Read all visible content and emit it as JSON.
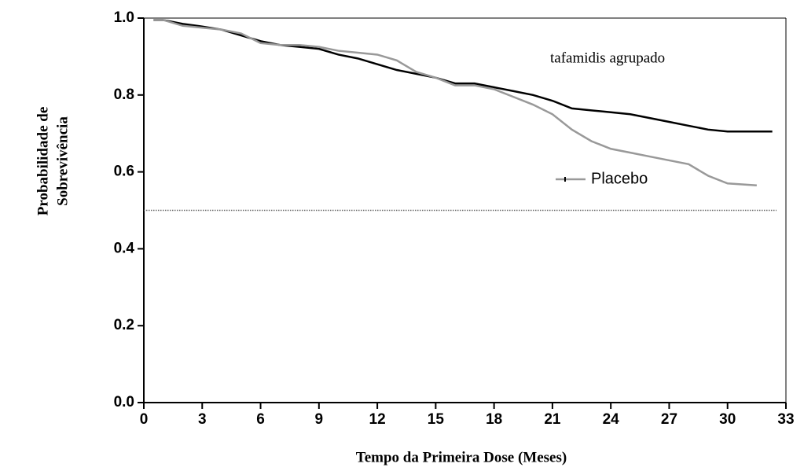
{
  "chart_data": {
    "type": "line",
    "x_label": "Tempo da Primeira Dose (Meses)",
    "y_label": [
      "Probabilidade de",
      "Sobrevivência"
    ],
    "xlim": [
      0,
      33
    ],
    "xticks": [
      0,
      3,
      6,
      9,
      12,
      15,
      18,
      21,
      24,
      27,
      30,
      33
    ],
    "ylim": [
      0,
      1
    ],
    "yticks": [
      {
        "value": 0,
        "label": "0.0"
      },
      0.2,
      0.4,
      0.6,
      0.8,
      {
        "value": 1,
        "label": "1.0"
      }
    ],
    "reference_line": 0.5,
    "series": [
      {
        "name": "tafamidis agrupado",
        "color": "#000000",
        "x": [
          0.5,
          1,
          2,
          3,
          4,
          5,
          6,
          7,
          8,
          9,
          10,
          11,
          12,
          13,
          14,
          15,
          16,
          17,
          18,
          19,
          20,
          21,
          22,
          23,
          24,
          25,
          26,
          27,
          28,
          29,
          30,
          31,
          32.3
        ],
        "values": [
          0.995,
          0.995,
          0.985,
          0.978,
          0.97,
          0.955,
          0.94,
          0.93,
          0.925,
          0.92,
          0.905,
          0.895,
          0.88,
          0.865,
          0.855,
          0.845,
          0.83,
          0.83,
          0.82,
          0.81,
          0.8,
          0.785,
          0.765,
          0.76,
          0.755,
          0.75,
          0.74,
          0.73,
          0.72,
          0.71,
          0.705,
          0.705,
          0.705
        ]
      },
      {
        "name": "Placebo",
        "color": "#999999",
        "x": [
          0.5,
          1,
          2,
          3,
          4,
          5,
          6,
          7,
          8,
          9,
          10,
          11,
          12,
          13,
          14,
          15,
          16,
          17,
          18,
          19,
          20,
          21,
          22,
          23,
          24,
          25,
          26,
          27,
          28,
          29,
          30,
          31.5
        ],
        "values": [
          0.995,
          0.995,
          0.98,
          0.975,
          0.97,
          0.96,
          0.935,
          0.93,
          0.93,
          0.925,
          0.915,
          0.91,
          0.905,
          0.89,
          0.86,
          0.845,
          0.825,
          0.825,
          0.815,
          0.795,
          0.775,
          0.75,
          0.71,
          0.68,
          0.66,
          0.65,
          0.64,
          0.63,
          0.62,
          0.59,
          0.57,
          0.565
        ]
      }
    ]
  }
}
